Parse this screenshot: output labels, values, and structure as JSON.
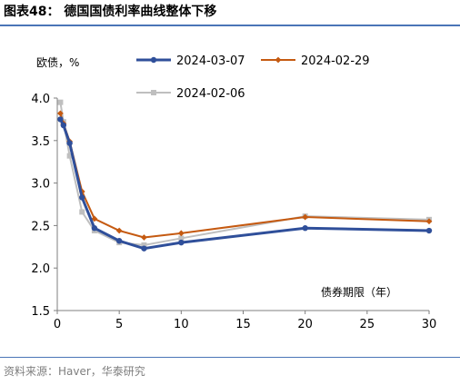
{
  "title": "图表48：  德国国债利率曲线整体下移",
  "source": "资料来源：Haver，华泰研究",
  "chart_data": {
    "type": "line",
    "xlabel": "债券期限（年）",
    "ylabel": "欧债，%",
    "xlim": [
      0,
      30
    ],
    "ylim": [
      1.5,
      4.0
    ],
    "xticks": [
      "0",
      "5",
      "10",
      "15",
      "20",
      "25",
      "30"
    ],
    "yticks": [
      "1.5",
      "2.0",
      "2.5",
      "3.0",
      "3.5",
      "4.0"
    ],
    "grid": false,
    "legend_position": "top",
    "series": [
      {
        "name": "2024-03-07",
        "color": "#2f4f9a",
        "marker": "circle",
        "x": [
          0.25,
          0.5,
          1,
          2,
          3,
          5,
          7,
          10,
          20,
          30
        ],
        "y": [
          3.75,
          3.68,
          3.47,
          2.83,
          2.47,
          2.32,
          2.23,
          2.3,
          2.47,
          2.44
        ]
      },
      {
        "name": "2024-02-29",
        "color": "#c55a11",
        "marker": "diamond",
        "x": [
          0.25,
          0.5,
          1,
          2,
          3,
          5,
          7,
          10,
          20,
          30
        ],
        "y": [
          3.82,
          3.7,
          3.49,
          2.9,
          2.58,
          2.44,
          2.36,
          2.41,
          2.6,
          2.55
        ]
      },
      {
        "name": "2024-02-06",
        "color": "#bfbfbf",
        "marker": "square",
        "x": [
          0.25,
          0.5,
          1,
          2,
          3,
          5,
          7,
          10,
          20,
          30
        ],
        "y": [
          3.95,
          3.72,
          3.32,
          2.66,
          2.44,
          2.3,
          2.27,
          2.35,
          2.61,
          2.57
        ]
      }
    ]
  }
}
